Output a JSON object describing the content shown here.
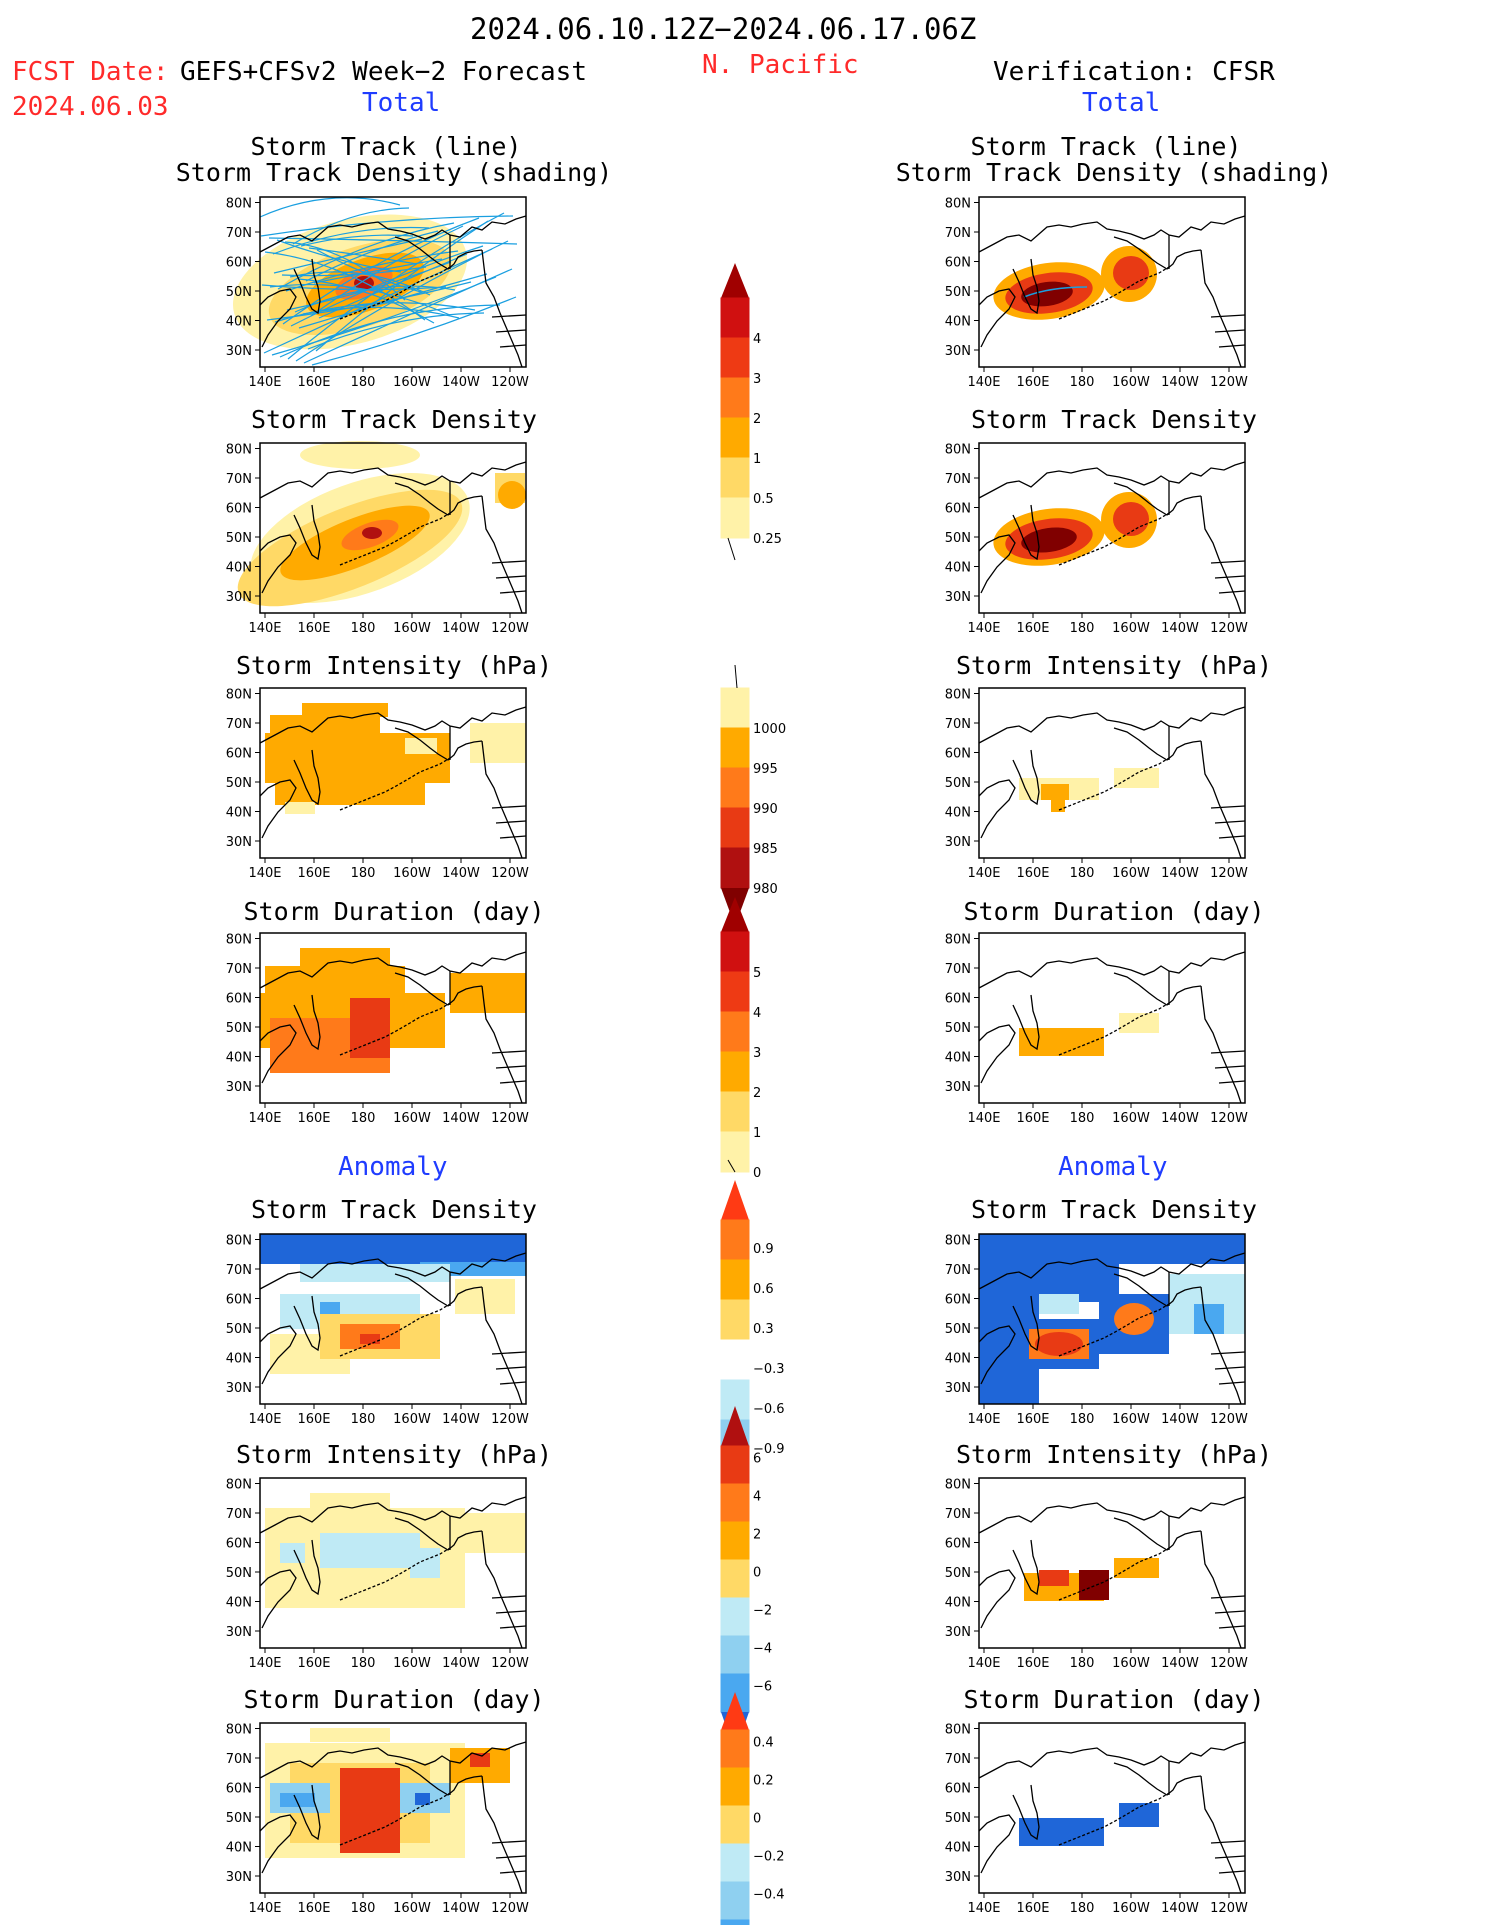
{
  "header": {
    "period": "2024.06.10.12Z−2024.06.17.06Z",
    "fcst_label": "FCST Date:",
    "model": "GEFS+CFSv2 Week−2 Forecast",
    "fcst_date": "2024.06.03",
    "region": "N. Pacific",
    "verification": "Verification: CFSR",
    "total_left": "Total",
    "total_right": "Total",
    "anomaly_left": "Anomaly",
    "anomaly_right": "Anomaly"
  },
  "panel_titles": {
    "track_line": "Storm Track (line)",
    "track_density_shading": "Storm Track Density (shading)",
    "density": "Storm Track Density",
    "intensity": "Storm Intensity (hPa)",
    "duration": "Storm Duration (day)"
  },
  "axes": {
    "lat_labels": [
      "30N",
      "40N",
      "50N",
      "60N",
      "70N",
      "80N"
    ],
    "lon_labels": [
      "140E",
      "160E",
      "180",
      "160W",
      "140W",
      "120W"
    ]
  },
  "colorbars": {
    "density_total": [
      "4",
      "3",
      "2",
      "1",
      "0.5",
      "0.25"
    ],
    "intensity_total": [
      "1000",
      "995",
      "990",
      "985",
      "980"
    ],
    "duration_total": [
      "5",
      "4",
      "3",
      "2",
      "1",
      "0"
    ],
    "density_anom": [
      "0.9",
      "0.6",
      "0.3",
      "−0.3",
      "−0.6",
      "−0.9"
    ],
    "intensity_anom": [
      "6",
      "4",
      "2",
      "0",
      "−2",
      "−4",
      "−6"
    ],
    "duration_anom": [
      "0.4",
      "0.2",
      "0",
      "−0.2",
      "−0.4"
    ]
  },
  "colors": {
    "warm": [
      "#fff2a8",
      "#ffd966",
      "#ffaa00",
      "#ff7a1a",
      "#e83a14",
      "#b01010",
      "#800000"
    ],
    "cool": [
      "#bfeaf5",
      "#8fd0f0",
      "#4aa8f0",
      "#1f66d8"
    ],
    "track_line": "#1a9fe0"
  }
}
